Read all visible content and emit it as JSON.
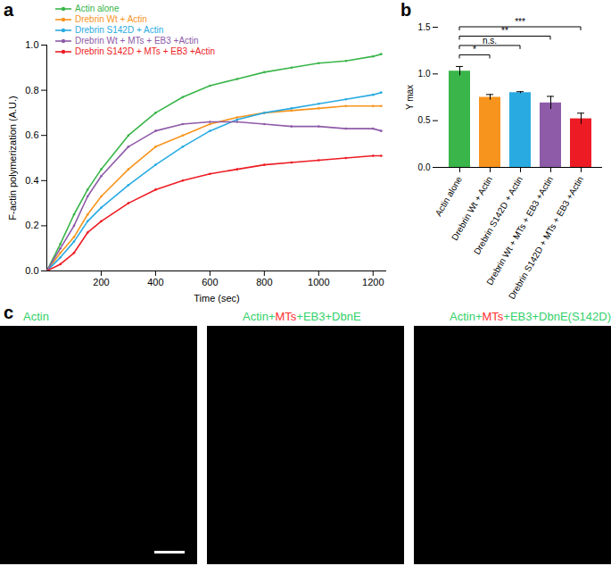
{
  "chart_data": [
    {
      "panel": "a",
      "type": "line",
      "x_label": "Time (sec)",
      "y_label": "F-actin polymerization (A.U.)",
      "xlim": [
        0,
        1250
      ],
      "xticks": [
        200,
        400,
        600,
        800,
        1000,
        1200
      ],
      "ylim": [
        0,
        1
      ],
      "yticks": [
        {
          "value": 0,
          "label": "0.0"
        },
        0.2,
        0.4,
        0.6,
        0.8,
        {
          "value": 1,
          "label": "1.0"
        }
      ],
      "legend": "top-left",
      "marker": "circle",
      "x": [
        0,
        50,
        100,
        150,
        200,
        300,
        400,
        500,
        600,
        700,
        800,
        900,
        1000,
        1100,
        1200,
        1230
      ],
      "series": [
        {
          "name": "Actin alone",
          "color": "#39b54a",
          "values": [
            0,
            0.12,
            0.25,
            0.36,
            0.45,
            0.6,
            0.7,
            0.77,
            0.82,
            0.85,
            0.88,
            0.9,
            0.92,
            0.93,
            0.95,
            0.96
          ]
        },
        {
          "name": "Drebrin Wt + Actin",
          "color": "#f7941d",
          "values": [
            0,
            0.08,
            0.15,
            0.25,
            0.33,
            0.45,
            0.55,
            0.6,
            0.65,
            0.68,
            0.7,
            0.71,
            0.72,
            0.73,
            0.73,
            0.73
          ]
        },
        {
          "name": "Drebrin S142D + Actin",
          "color": "#29abe2",
          "values": [
            0,
            0.06,
            0.13,
            0.22,
            0.28,
            0.38,
            0.47,
            0.55,
            0.62,
            0.67,
            0.7,
            0.72,
            0.74,
            0.76,
            0.78,
            0.79
          ]
        },
        {
          "name": "Drebrin Wt + MTs + EB3 +Actin",
          "color": "#8e5ba8",
          "values": [
            0,
            0.1,
            0.2,
            0.33,
            0.42,
            0.55,
            0.62,
            0.65,
            0.66,
            0.66,
            0.65,
            0.64,
            0.64,
            0.63,
            0.63,
            0.62
          ]
        },
        {
          "name": "Drebrin S142D + MTs + EB3 +Actin",
          "color": "#ed1c24",
          "values": [
            0,
            0.03,
            0.08,
            0.17,
            0.22,
            0.3,
            0.36,
            0.4,
            0.43,
            0.45,
            0.47,
            0.48,
            0.49,
            0.5,
            0.51,
            0.51
          ]
        }
      ]
    },
    {
      "panel": "b",
      "type": "bar",
      "y_label": "Y max",
      "categories": [
        "Actin alone",
        "Drebrin Wt + Actin",
        "Drebrin S142D + Actin",
        "Drebrin Wt + MTs + EB3 +Actin",
        "Drebrin S142D + MTs + EB3 +Actin"
      ],
      "values": [
        1.03,
        0.75,
        0.8,
        0.69,
        0.52
      ],
      "errors": [
        0.05,
        0.03,
        0.01,
        0.07,
        0.06
      ],
      "colors": [
        "#39b54a",
        "#f7941d",
        "#29abe2",
        "#8e5ba8",
        "#ed1c24"
      ],
      "ylim": [
        0,
        1.5
      ],
      "yticks": [
        {
          "value": 0,
          "label": "0.0"
        },
        0.5,
        {
          "value": 1,
          "label": "1.0"
        },
        1.5
      ],
      "annotations": [
        {
          "from": "Actin alone",
          "to": "Drebrin Wt + Actin",
          "label": "*"
        },
        {
          "from": "Actin alone",
          "to": "Drebrin S142D + Actin",
          "label": "n.s."
        },
        {
          "from": "Actin alone",
          "to": "Drebrin Wt + MTs + EB3 +Actin",
          "label": "**"
        },
        {
          "from": "Actin alone",
          "to": "Drebrin S142D + MTs + EB3 +Actin",
          "label": "***"
        }
      ]
    }
  ],
  "panel_c": {
    "panel": "c",
    "images": [
      {
        "label": [
          {
            "text": "Actin",
            "color": "#33d16a"
          }
        ]
      },
      {
        "label": [
          {
            "text": "Actin+",
            "color": "#33d16a"
          },
          {
            "text": "MTs",
            "color": "#ff3030"
          },
          {
            "text": "+EB3+DbnE",
            "color": "#33d16a"
          }
        ]
      },
      {
        "label": [
          {
            "text": "Actin+",
            "color": "#33d16a"
          },
          {
            "text": "MTs",
            "color": "#ff3030"
          },
          {
            "text": "+EB3+DbnE(S142D)",
            "color": "#33d16a"
          }
        ]
      }
    ]
  }
}
